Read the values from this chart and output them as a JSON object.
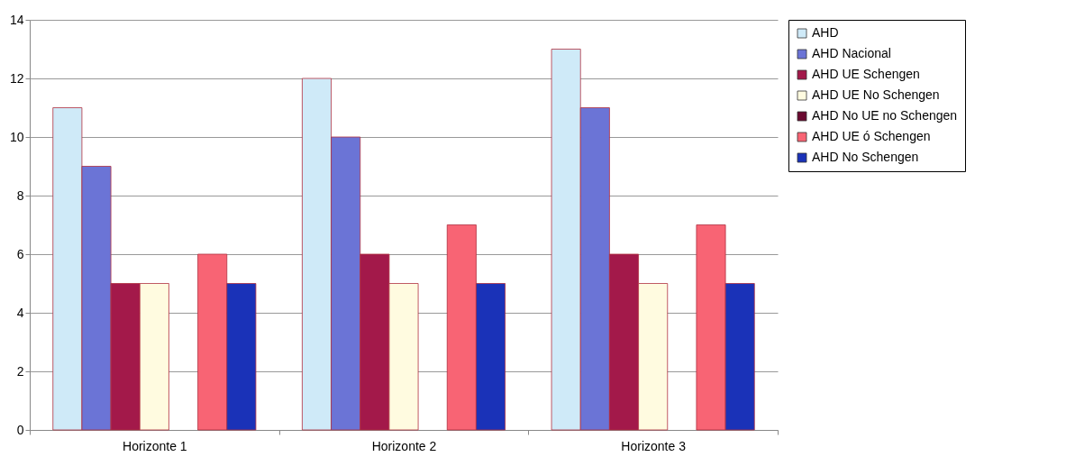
{
  "chart_data": {
    "type": "bar",
    "categories": [
      "Horizonte 1",
      "Horizonte 2",
      "Horizonte 3"
    ],
    "series": [
      {
        "name": "AHD",
        "color": "#cfeaf8",
        "values": [
          11,
          12,
          13
        ]
      },
      {
        "name": "AHD Nacional",
        "color": "#6b74d6",
        "values": [
          9,
          10,
          11
        ]
      },
      {
        "name": "AHD UE Schengen",
        "color": "#a3194a",
        "values": [
          5,
          6,
          6
        ]
      },
      {
        "name": "AHD UE No Schengen",
        "color": "#fffbe0",
        "values": [
          5,
          5,
          5
        ]
      },
      {
        "name": "AHD No UE no Schengen",
        "color": "#6a0a30",
        "values": [
          null,
          null,
          null
        ]
      },
      {
        "name": "AHD UE ó Schengen",
        "color": "#f86474",
        "values": [
          6,
          7,
          7
        ]
      },
      {
        "name": "AHD No Schengen",
        "color": "#1a32b8",
        "values": [
          5,
          5,
          5
        ]
      }
    ],
    "ylim": [
      0,
      14
    ],
    "yticks": [
      0,
      2,
      4,
      6,
      8,
      10,
      12,
      14
    ],
    "grid": "y",
    "legend": "right"
  }
}
